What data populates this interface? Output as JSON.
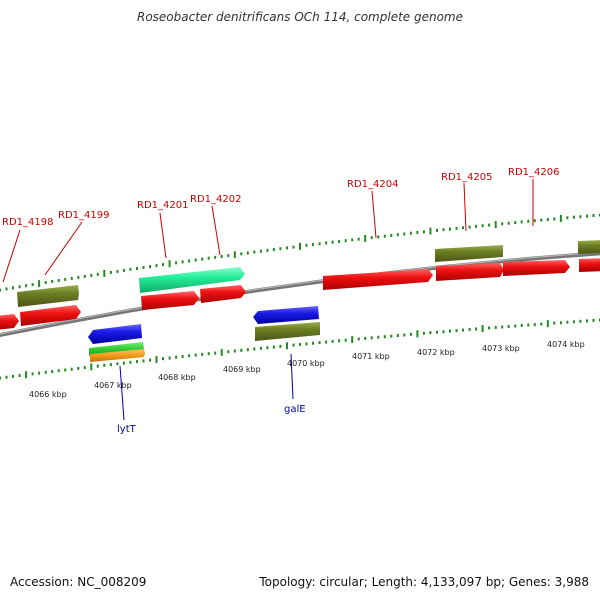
{
  "title": "Roseobacter denitrificans OCh 114, complete genome",
  "footer": {
    "accession": "Accession: NC_008209",
    "topology": "Topology: circular; Length: 4,133,097 bp; Genes: 3,988"
  },
  "gene_labels_top": [
    "RD1_4198",
    "RD1_4199",
    "RD1_4201",
    "RD1_4202",
    "RD1_4204",
    "RD1_4205",
    "RD1_4206"
  ],
  "gene_labels_bottom": [
    "lytT",
    "galE"
  ],
  "scale_labels": [
    "4066 kbp",
    "4067 kbp",
    "4068 kbp",
    "4069 kbp",
    "4070 kbp",
    "4071 kbp",
    "4072 kbp",
    "4073 kbp",
    "4074 kbp"
  ],
  "colors": {
    "forward_cds": "#ee1111",
    "rna": "#22ee99",
    "olive_feature": "#667a22",
    "reverse_cds": "#1a1ae6",
    "green_feature": "#33cc33",
    "orange_feature": "#f29a1a",
    "backbone": "#888888",
    "tick": "#228b22",
    "label_red": "#cc0000",
    "label_blue": "#0000aa"
  }
}
